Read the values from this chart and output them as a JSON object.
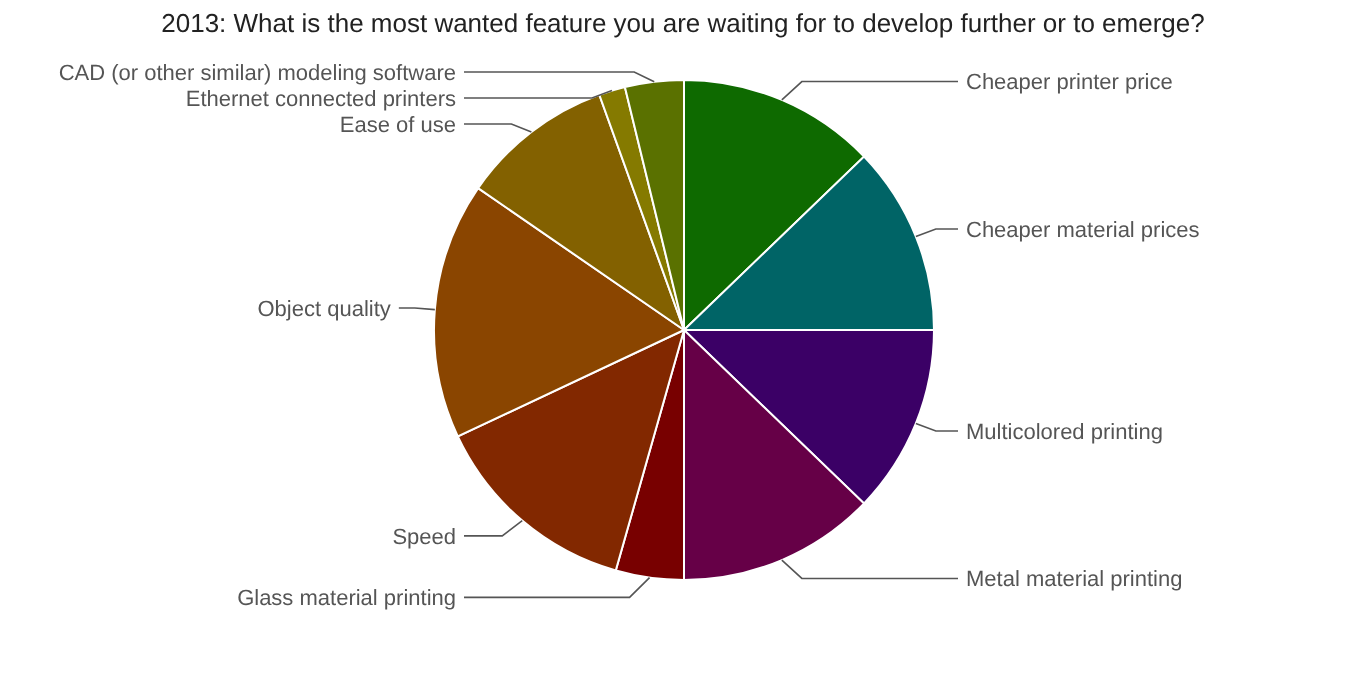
{
  "chart_data": {
    "type": "pie",
    "title": "2013: What is the most wanted feature you are waiting for to develop further or to emerge?",
    "categories": [
      "Cheaper printer price",
      "Cheaper material prices",
      "Multicolored printing",
      "Metal material printing",
      "Glass material printing",
      "Speed",
      "Object quality",
      "Ease of use",
      "Ethernet connected printers",
      "CAD (or other similar) modeling software"
    ],
    "values": [
      12.8,
      12.2,
      12.2,
      12.8,
      4.4,
      13.6,
      16.6,
      9.9,
      1.7,
      3.8
    ],
    "colors": [
      "#0e6a00",
      "#006466",
      "#3b0066",
      "#660047",
      "#780000",
      "#822800",
      "#8a4500",
      "#836100",
      "#857a00",
      "#5a7100"
    ]
  }
}
